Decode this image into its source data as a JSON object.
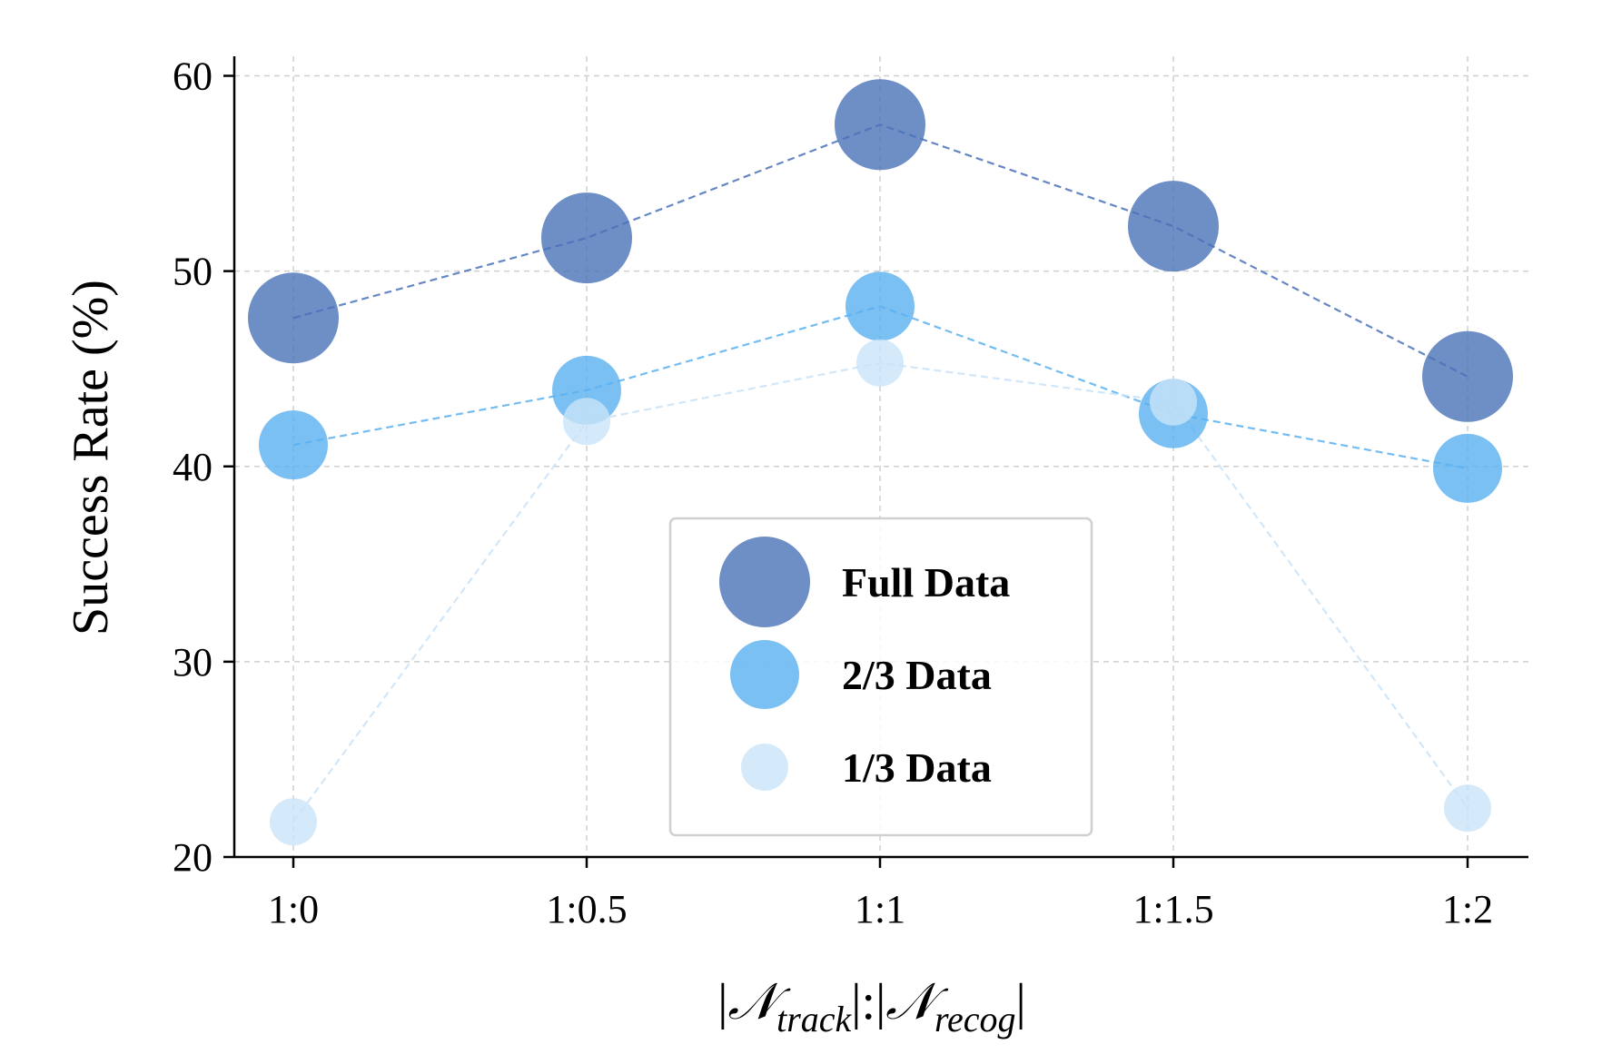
{
  "chart_data": {
    "type": "scatter",
    "categories": [
      "1:0",
      "1:0.5",
      "1:1",
      "1:1.5",
      "1:2"
    ],
    "ylabel": "Success Rate (%)",
    "xlabel_parts": {
      "open": "|",
      "n1": "𝒩",
      "sub1": "track",
      "mid": "|:|",
      "n2": "𝒩",
      "sub2": "recog",
      "close": "|"
    },
    "ylim": [
      20,
      61
    ],
    "yticks": [
      20,
      30,
      40,
      50,
      60
    ],
    "grid": true,
    "legend_position": "center",
    "series": [
      {
        "name": "Full Data",
        "color": "#4a72b8",
        "opacity": 0.8,
        "values": [
          47.6,
          51.7,
          57.5,
          52.3,
          44.6
        ]
      },
      {
        "name": "2/3 Data",
        "color": "#5ab0f0",
        "opacity": 0.8,
        "values": [
          41.1,
          43.9,
          48.2,
          42.7,
          39.9
        ]
      },
      {
        "name": "1/3 Data",
        "color": "#c9e3f8",
        "opacity": 0.8,
        "values": [
          21.8,
          42.3,
          45.3,
          43.3,
          22.5
        ]
      }
    ]
  }
}
